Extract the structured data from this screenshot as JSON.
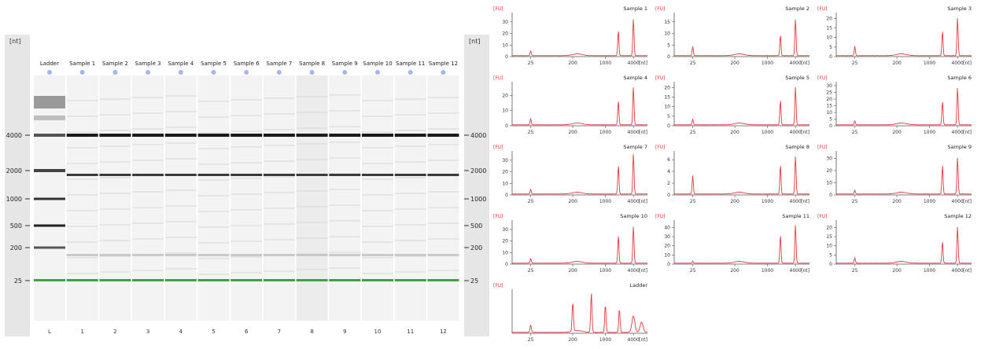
{
  "gel": {
    "unit_label": "[nt]",
    "markers": [
      "4000",
      "2000",
      "1000",
      "500",
      "200",
      "25"
    ],
    "lane_names": [
      "Ladder",
      "Sample 1",
      "Sample 2",
      "Sample 3",
      "Sample 4",
      "Sample 5",
      "Sample 6",
      "Sample 7",
      "Sample 8",
      "Sample 9",
      "Sample 10",
      "Sample 11",
      "Sample 12"
    ],
    "lane_ids": [
      "L",
      "1",
      "2",
      "3",
      "4",
      "5",
      "6",
      "7",
      "8",
      "9",
      "10",
      "11",
      "12"
    ],
    "marker_band_color": "#3aa63a",
    "dot_color": "#a8b4f0"
  },
  "electropherograms": {
    "y_unit": "[FU]",
    "x_unit": "[nt]",
    "x_ticks": [
      "25",
      "200",
      "1000",
      "4000"
    ],
    "ladder_x_ticks": [
      "25",
      "200",
      "1000",
      "4000"
    ],
    "line_color": "#e8383d"
  },
  "chart_data": [
    {
      "type": "line",
      "title": "Sample 1",
      "xlabel": "[nt]",
      "ylabel": "[FU]",
      "yticks": [
        0,
        10,
        20,
        30
      ],
      "ylim": [
        0,
        38
      ],
      "x": [
        "25",
        "200",
        "~1900 (18S)",
        "~4000 (28S)"
      ],
      "peaks": [
        {
          "nt": 25,
          "fu": 4
        },
        {
          "nt": 1900,
          "fu": 22
        },
        {
          "nt": 4000,
          "fu": 32
        }
      ]
    },
    {
      "type": "line",
      "title": "Sample 2",
      "xlabel": "[nt]",
      "ylabel": "[FU]",
      "yticks": [
        0,
        5,
        10,
        15
      ],
      "ylim": [
        0,
        19
      ],
      "peaks": [
        {
          "nt": 25,
          "fu": 4
        },
        {
          "nt": 1900,
          "fu": 9
        },
        {
          "nt": 4000,
          "fu": 16
        }
      ]
    },
    {
      "type": "line",
      "title": "Sample 3",
      "xlabel": "[nt]",
      "ylabel": "[FU]",
      "yticks": [
        0,
        5,
        10,
        15,
        20
      ],
      "ylim": [
        0,
        23
      ],
      "peaks": [
        {
          "nt": 25,
          "fu": 5
        },
        {
          "nt": 1900,
          "fu": 13
        },
        {
          "nt": 4000,
          "fu": 20
        }
      ]
    },
    {
      "type": "line",
      "title": "Sample 4",
      "xlabel": "[nt]",
      "ylabel": "[FU]",
      "yticks": [
        0,
        10,
        20
      ],
      "ylim": [
        0,
        29
      ],
      "peaks": [
        {
          "nt": 25,
          "fu": 4
        },
        {
          "nt": 1900,
          "fu": 16
        },
        {
          "nt": 4000,
          "fu": 25
        }
      ]
    },
    {
      "type": "line",
      "title": "Sample 5",
      "xlabel": "[nt]",
      "ylabel": "[FU]",
      "yticks": [
        0,
        5,
        10,
        15,
        20
      ],
      "ylim": [
        0,
        23
      ],
      "peaks": [
        {
          "nt": 25,
          "fu": 3
        },
        {
          "nt": 1900,
          "fu": 13
        },
        {
          "nt": 4000,
          "fu": 20
        }
      ]
    },
    {
      "type": "line",
      "title": "Sample 6",
      "xlabel": "[nt]",
      "ylabel": "[FU]",
      "yticks": [
        0,
        5,
        10,
        15,
        20,
        25,
        30
      ],
      "ylim": [
        0,
        33
      ],
      "peaks": [
        {
          "nt": 25,
          "fu": 3
        },
        {
          "nt": 1900,
          "fu": 18
        },
        {
          "nt": 4000,
          "fu": 28
        }
      ]
    },
    {
      "type": "line",
      "title": "Sample 7",
      "xlabel": "[nt]",
      "ylabel": "[FU]",
      "yticks": [
        0,
        10,
        20,
        30
      ],
      "ylim": [
        0,
        38
      ],
      "peaks": [
        {
          "nt": 25,
          "fu": 4
        },
        {
          "nt": 1900,
          "fu": 25
        },
        {
          "nt": 4000,
          "fu": 35
        }
      ]
    },
    {
      "type": "line",
      "title": "Sample 8",
      "xlabel": "[nt]",
      "ylabel": "[FU]",
      "yticks": [
        0,
        2,
        4,
        6
      ],
      "ylim": [
        0,
        7.5
      ],
      "peaks": [
        {
          "nt": 25,
          "fu": 3.2
        },
        {
          "nt": 1900,
          "fu": 5.0
        },
        {
          "nt": 4000,
          "fu": 6.5
        }
      ]
    },
    {
      "type": "line",
      "title": "Sample 9",
      "xlabel": "[nt]",
      "ylabel": "[FU]",
      "yticks": [
        0,
        10,
        20,
        30
      ],
      "ylim": [
        0,
        36
      ],
      "peaks": [
        {
          "nt": 25,
          "fu": 3
        },
        {
          "nt": 1900,
          "fu": 24
        },
        {
          "nt": 4000,
          "fu": 30
        }
      ]
    },
    {
      "type": "line",
      "title": "Sample 10",
      "xlabel": "[nt]",
      "ylabel": "[FU]",
      "yticks": [
        0,
        10,
        20,
        30
      ],
      "ylim": [
        0,
        38
      ],
      "peaks": [
        {
          "nt": 25,
          "fu": 4
        },
        {
          "nt": 1900,
          "fu": 24
        },
        {
          "nt": 4000,
          "fu": 32
        }
      ]
    },
    {
      "type": "line",
      "title": "Sample 11",
      "xlabel": "[nt]",
      "ylabel": "[FU]",
      "yticks": [
        0,
        10,
        20,
        30,
        40
      ],
      "ylim": [
        0,
        48
      ],
      "peaks": [
        {
          "nt": 25,
          "fu": 2
        },
        {
          "nt": 1900,
          "fu": 31
        },
        {
          "nt": 4000,
          "fu": 42
        }
      ]
    },
    {
      "type": "line",
      "title": "Sample 12",
      "xlabel": "[nt]",
      "ylabel": "[FU]",
      "yticks": [
        0,
        5,
        10,
        15,
        20
      ],
      "ylim": [
        0,
        24
      ],
      "peaks": [
        {
          "nt": 25,
          "fu": 3
        },
        {
          "nt": 1900,
          "fu": 12
        },
        {
          "nt": 4000,
          "fu": 20
        }
      ]
    },
    {
      "type": "line",
      "title": "Ladder",
      "xlabel": "[nt]",
      "ylabel": "[FU]",
      "yticks": [],
      "ylim": [
        0,
        30
      ],
      "peaks": [
        {
          "nt": 25,
          "fu": 5
        },
        {
          "nt": 200,
          "fu": 20
        },
        {
          "nt": 500,
          "fu": 27
        },
        {
          "nt": 1000,
          "fu": 19
        },
        {
          "nt": 2000,
          "fu": 16
        },
        {
          "nt": 4000,
          "fu": 11
        },
        {
          "nt": 6000,
          "fu": 7
        }
      ]
    }
  ]
}
